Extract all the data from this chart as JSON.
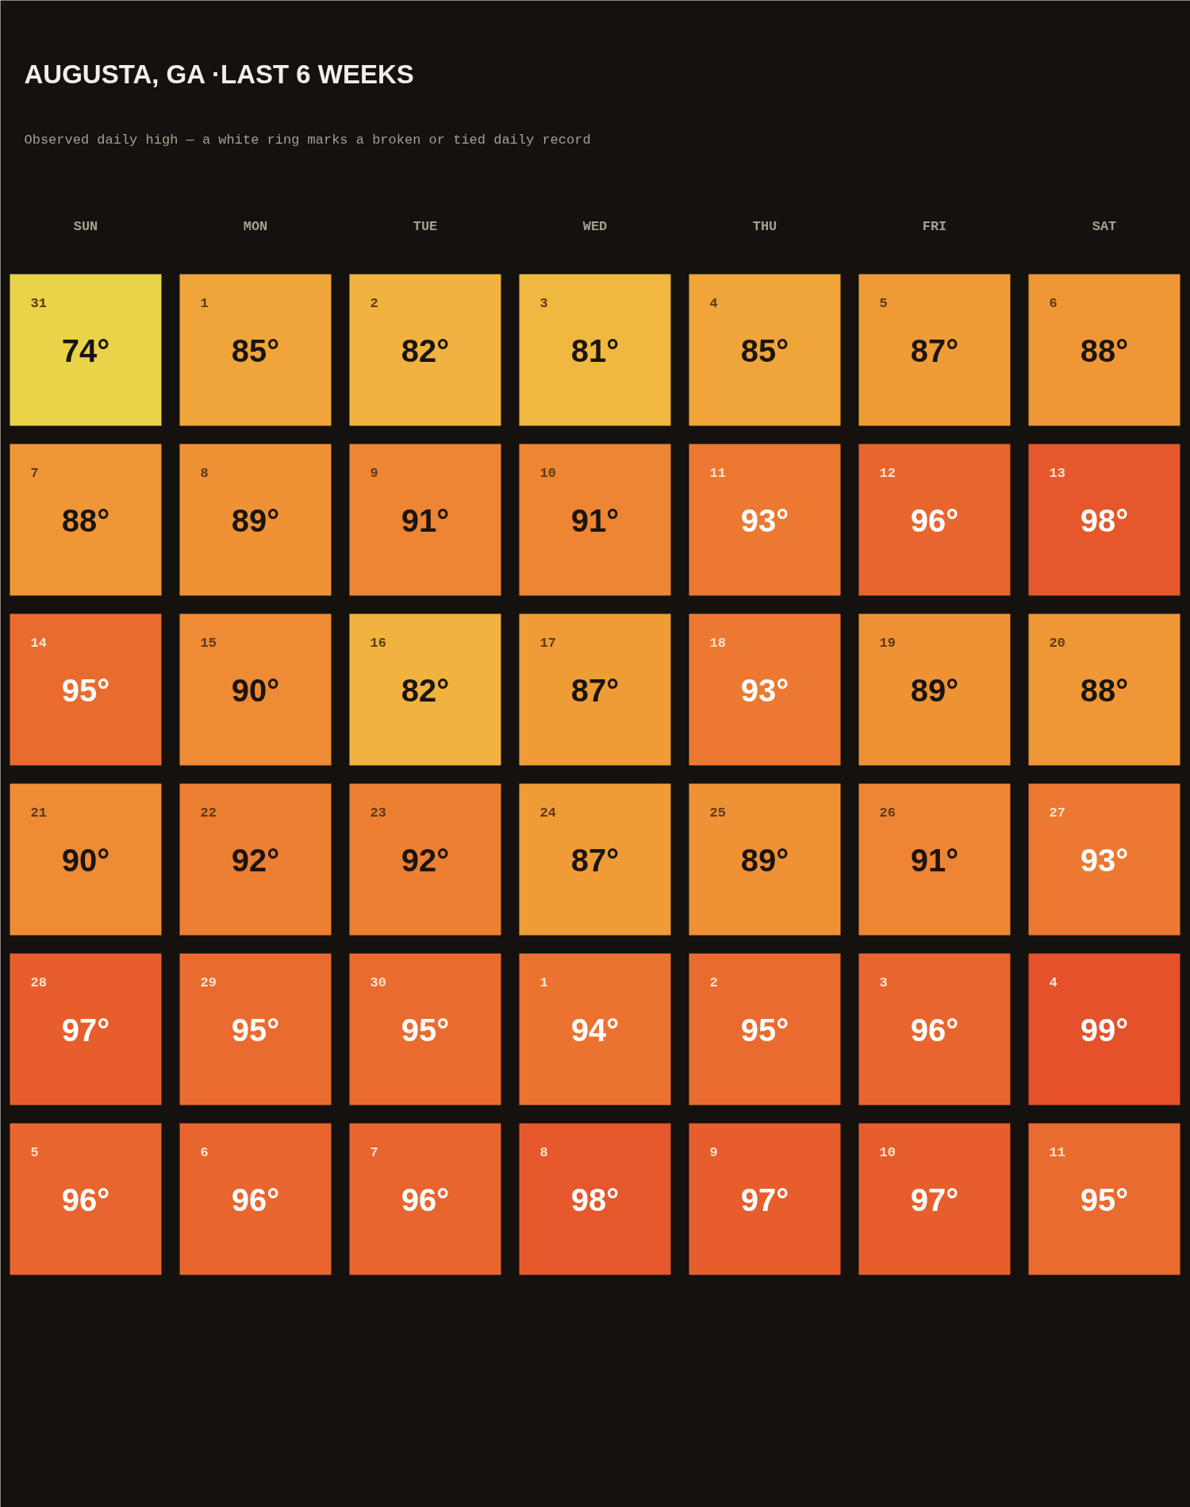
{
  "chart_data": {
    "type": "heatmap",
    "title": "AUGUSTA, GA ·LAST 6 WEEKS",
    "subtitle": "Observed daily high — a white ring marks a broken or tied daily record",
    "categories": [
      "SUN",
      "MON",
      "TUE",
      "WED",
      "THU",
      "FRI",
      "SAT"
    ],
    "y_categories": [
      null,
      null,
      null,
      null,
      null,
      null
    ],
    "cells": [
      [
        74,
        85,
        82,
        81,
        85,
        87,
        88
      ],
      [
        88,
        89,
        91,
        91,
        93,
        96,
        98
      ],
      [
        95,
        90,
        82,
        87,
        93,
        89,
        88
      ],
      [
        90,
        92,
        92,
        87,
        89,
        91,
        93
      ],
      [
        97,
        95,
        95,
        94,
        95,
        96,
        99
      ],
      [
        96,
        96,
        96,
        98,
        97,
        97,
        95
      ]
    ],
    "cell_labels": [
      [
        "74°",
        "85°",
        "82°",
        "81°",
        "85°",
        "87°",
        "88°"
      ],
      [
        "88°",
        "89°",
        "91°",
        "91°",
        "93°",
        "96°",
        "98°"
      ],
      [
        "95°",
        "90°",
        "82°",
        "87°",
        "93°",
        "89°",
        "88°"
      ],
      [
        "90°",
        "92°",
        "92°",
        "87°",
        "89°",
        "91°",
        "93°"
      ],
      [
        "97°",
        "95°",
        "95°",
        "94°",
        "95°",
        "96°",
        "99°"
      ],
      [
        "96°",
        "96°",
        "96°",
        "98°",
        "97°",
        "97°",
        "95°"
      ]
    ],
    "annotations": [
      "31",
      "1",
      "2",
      "3",
      "4",
      "5",
      "6",
      "7",
      "8",
      "9",
      "10",
      "11",
      "12",
      "13",
      "14",
      "15",
      "16",
      "17",
      "18",
      "19",
      "20",
      "21",
      "22",
      "23",
      "24",
      "25",
      "26",
      "27",
      "28",
      "29",
      "30",
      "1",
      "2",
      "3",
      "4",
      "5",
      "6",
      "7",
      "8",
      "9",
      "10",
      "11"
    ]
  }
}
